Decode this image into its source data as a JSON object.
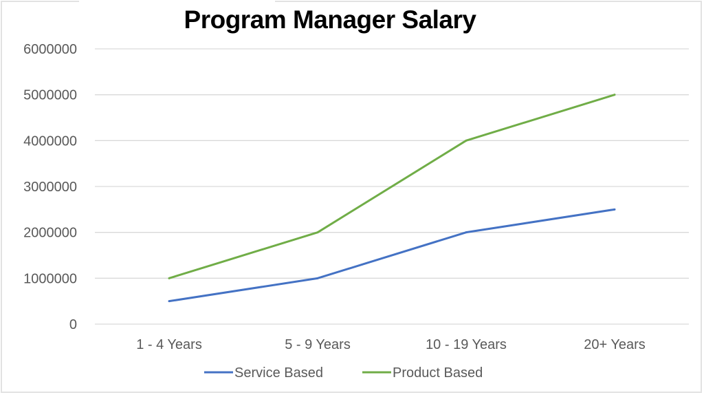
{
  "chart_data": {
    "type": "line",
    "title": "Program Manager Salary",
    "xlabel": "",
    "ylabel": "",
    "categories": [
      "1 - 4 Years",
      "5 - 9 Years",
      "10 - 19 Years",
      "20+ Years"
    ],
    "series": [
      {
        "name": "Service Based",
        "values": [
          500000,
          1000000,
          2000000,
          2500000
        ],
        "color": "#4472c4"
      },
      {
        "name": "Product Based",
        "values": [
          1000000,
          2000000,
          4000000,
          5000000
        ],
        "color": "#70ad47"
      }
    ],
    "ylim": [
      0,
      6000000
    ],
    "yticks": [
      "0",
      "1000000",
      "2000000",
      "3000000",
      "4000000",
      "5000000",
      "6000000"
    ],
    "grid": true,
    "gridline_color": "#d9d9d9",
    "legend_position": "bottom"
  }
}
